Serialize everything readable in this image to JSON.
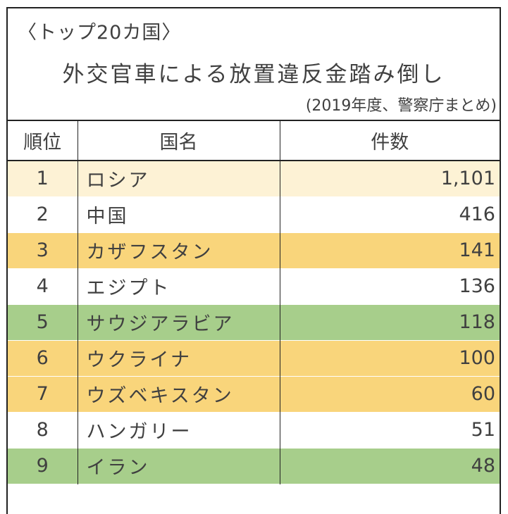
{
  "header": {
    "subtitle": "〈トップ20カ国〉",
    "title": "外交官車による放置違反金踏み倒し",
    "source": "(2019年度、警察庁まとめ)"
  },
  "table": {
    "columns": [
      "順位",
      "国名",
      "件数"
    ],
    "rows": [
      {
        "rank": "1",
        "country": "ロシア",
        "count": "1,101",
        "color": "#fdf2d5"
      },
      {
        "rank": "2",
        "country": "中国",
        "count": "416",
        "color": "#ffffff"
      },
      {
        "rank": "3",
        "country": "カザフスタン",
        "count": "141",
        "color": "#f9d57b"
      },
      {
        "rank": "4",
        "country": "エジプト",
        "count": "136",
        "color": "#ffffff"
      },
      {
        "rank": "5",
        "country": "サウジアラビア",
        "count": "118",
        "color": "#a7ce8b"
      },
      {
        "rank": "6",
        "country": "ウクライナ",
        "count": "100",
        "color": "#f9d57b"
      },
      {
        "rank": "7",
        "country": "ウズベキスタン",
        "count": "60",
        "color": "#f9d57b"
      },
      {
        "rank": "8",
        "country": "ハンガリー",
        "count": "51",
        "color": "#ffffff"
      },
      {
        "rank": "9",
        "country": "イラン",
        "count": "48",
        "color": "#a7ce8b"
      }
    ]
  }
}
